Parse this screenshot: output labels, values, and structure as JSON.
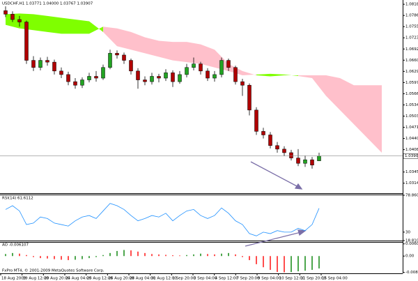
{
  "chart_data": [
    {
      "type": "candlestick",
      "title": "USDCHF,H1 1.03771 1.04000 1.03767 1.03907",
      "open": [
        1.08,
        1.079,
        1.0775,
        1.0768,
        1.066,
        1.064,
        1.066,
        1.0655,
        1.063,
        1.062,
        1.06,
        1.059,
        1.0605,
        1.0615,
        1.061,
        1.064,
        1.068,
        1.0675,
        1.066,
        1.063,
        1.0605,
        1.06,
        1.0615,
        1.061,
        1.0625,
        1.06,
        1.062,
        1.064,
        1.065,
        1.063,
        1.061,
        1.062,
        1.066,
        1.064,
        1.06,
        1.059,
        1.052,
        1.046,
        1.045,
        1.042,
        1.041,
        1.04,
        1.0385,
        1.037,
        1.038,
        1.03771
      ],
      "high": [
        1.0812,
        1.0798,
        1.0785,
        1.0772,
        1.0672,
        1.0668,
        1.067,
        1.0662,
        1.064,
        1.0628,
        1.061,
        1.0612,
        1.0625,
        1.063,
        1.0648,
        1.069,
        1.0688,
        1.0682,
        1.0665,
        1.0638,
        1.0615,
        1.0625,
        1.0622,
        1.0635,
        1.0632,
        1.063,
        1.065,
        1.0668,
        1.0656,
        1.0638,
        1.063,
        1.0668,
        1.0665,
        1.0645,
        1.0608,
        1.0595,
        1.0528,
        1.047,
        1.0458,
        1.043,
        1.0418,
        1.0408,
        1.041,
        1.0392,
        1.0388,
        1.04
      ],
      "low": [
        1.0782,
        1.0768,
        1.0755,
        1.065,
        1.063,
        1.0632,
        1.0645,
        1.062,
        1.061,
        1.059,
        1.058,
        1.0582,
        1.0598,
        1.06,
        1.0605,
        1.0635,
        1.0665,
        1.065,
        1.062,
        1.058,
        1.059,
        1.0592,
        1.0598,
        1.0602,
        1.0585,
        1.0594,
        1.0612,
        1.0632,
        1.062,
        1.0602,
        1.06,
        1.0612,
        1.063,
        1.0592,
        1.056,
        1.0505,
        1.045,
        1.044,
        1.0412,
        1.04,
        1.039,
        1.0378,
        1.0362,
        1.036,
        1.0355,
        1.03767
      ],
      "close": [
        1.079,
        1.0775,
        1.0768,
        1.066,
        1.064,
        1.066,
        1.0655,
        1.063,
        1.062,
        1.06,
        1.059,
        1.0605,
        1.0615,
        1.061,
        1.064,
        1.068,
        1.0675,
        1.066,
        1.063,
        1.0605,
        1.06,
        1.0615,
        1.061,
        1.0625,
        1.06,
        1.062,
        1.064,
        1.065,
        1.063,
        1.061,
        1.062,
        1.066,
        1.064,
        1.06,
        1.059,
        1.052,
        1.046,
        1.045,
        1.042,
        1.041,
        1.04,
        1.0385,
        1.037,
        1.038,
        1.0365,
        1.03907
      ],
      "up_color": "#22a322",
      "down_color": "#b00000",
      "cloud_x": [
        0,
        2,
        4,
        6,
        8,
        10,
        12,
        14,
        16,
        18,
        20,
        22,
        24,
        26,
        28,
        30,
        32,
        34,
        36,
        38,
        40,
        42,
        44,
        46,
        48,
        50,
        52,
        54
      ],
      "span_a": [
        1.079,
        1.0792,
        1.079,
        1.0785,
        1.078,
        1.0775,
        1.077,
        1.074,
        1.07,
        1.069,
        1.068,
        1.067,
        1.066,
        1.0655,
        1.065,
        1.064,
        1.063,
        1.0618,
        1.062,
        1.0622,
        1.062,
        1.0616,
        1.061,
        1.056,
        1.052,
        1.048,
        1.044,
        1.04
      ],
      "span_b": [
        1.076,
        1.075,
        1.0745,
        1.074,
        1.0735,
        1.0735,
        1.0735,
        1.0755,
        1.075,
        1.074,
        1.0725,
        1.0715,
        1.0712,
        1.0712,
        1.0705,
        1.069,
        1.065,
        1.063,
        1.0618,
        1.0615,
        1.0618,
        1.0618,
        1.0618,
        1.0618,
        1.061,
        1.059,
        1.059,
        1.059
      ],
      "cloud_up_color": "#7fff00",
      "cloud_down_color": "#ffc0cb",
      "ylim": [
        1.0286,
        1.083
      ],
      "yticks": [
        {
          "value": 1.0818,
          "label": "1.08180"
        },
        {
          "value": 1.07865,
          "label": "1.07865"
        },
        {
          "value": 1.0755,
          "label": "1.07550"
        },
        {
          "value": 1.07235,
          "label": "1.07235"
        },
        {
          "value": 1.0692,
          "label": "1.06920"
        },
        {
          "value": 1.06605,
          "label": "1.06605"
        },
        {
          "value": 1.0629,
          "label": "1.06290"
        },
        {
          "value": 1.05975,
          "label": "1.05975"
        },
        {
          "value": 1.0566,
          "label": "1.05660"
        },
        {
          "value": 1.05345,
          "label": "1.05345"
        },
        {
          "value": 1.0503,
          "label": "1.05030"
        },
        {
          "value": 1.04715,
          "label": "1.04715"
        },
        {
          "value": 1.044,
          "label": "1.04400"
        },
        {
          "value": 1.04085,
          "label": "1.04085"
        },
        {
          "value": 1.03455,
          "label": "1.03455"
        },
        {
          "value": 1.0314,
          "label": "1.03140"
        }
      ],
      "x_labels": [
        "18 Aug 2009",
        "19 Aug 12:00",
        "20 Aug 20:00",
        "24 Aug 04:00",
        "25 Aug 12:00",
        "26 Aug 20:00",
        "28 Aug 04:00",
        "31 Aug 12:00",
        "1 Sep 20:00",
        "3 Sep 04:00",
        "4 Sep 12:00",
        "7 Sep 20:00",
        "9 Sep 04:00",
        "10 Sep 12:00",
        "11 Sep 20:00",
        "15 Sep 04:00"
      ],
      "footer": "FxPro MT4, © 2001-2009 MetaQuotes Software Corp."
    },
    {
      "type": "line",
      "title": "RSI(14) 61.6112",
      "color": "#1e90ff",
      "values": [
        60,
        65,
        58,
        40,
        42,
        50,
        48,
        42,
        40,
        38,
        45,
        50,
        52,
        48,
        58,
        68,
        65,
        60,
        52,
        45,
        48,
        52,
        50,
        55,
        45,
        52,
        58,
        60,
        52,
        48,
        52,
        62,
        55,
        45,
        40,
        28,
        25,
        30,
        28,
        32,
        30,
        30,
        35,
        32,
        40,
        61.6112
      ],
      "ylim": [
        18.8107,
        78.8604
      ],
      "yticks": [
        78.8604,
        30,
        18.8107
      ]
    },
    {
      "type": "histogram",
      "title": "AO -0.006107",
      "up_color": "#008000",
      "down_color": "#ff0000",
      "values": [
        0.001,
        0.0015,
        0.0012,
        0.0005,
        -0.0005,
        -0.001,
        -0.0012,
        -0.0015,
        -0.0018,
        -0.002,
        -0.0018,
        -0.0015,
        -0.001,
        -0.0005,
        0.0005,
        0.0015,
        0.0025,
        0.003,
        0.0028,
        0.0022,
        0.0015,
        0.001,
        0.0008,
        0.0006,
        0.0004,
        0.0003,
        0.0005,
        0.0008,
        0.0012,
        0.001,
        0.0008,
        0.0012,
        0.0015,
        0.0008,
        -0.0005,
        -0.002,
        -0.004,
        -0.0055,
        -0.0068,
        -0.0078,
        -0.008,
        -0.0079,
        -0.0075,
        -0.0072,
        -0.0068,
        -0.006107
      ],
      "ylim": [
        -0.0085,
        0.0066
      ],
      "yticks": [
        {
          "value": 0.006,
          "label": "0.00600"
        },
        {
          "value": 0,
          "label": "0.00"
        },
        {
          "value": -0.00806,
          "label": "-0.00806"
        }
      ]
    }
  ]
}
